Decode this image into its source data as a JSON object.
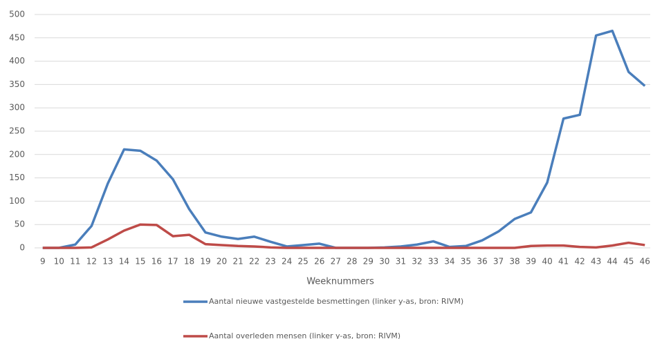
{
  "chart_data": {
    "type": "line",
    "x_label": "Weeknummers",
    "categories": [
      "9",
      "10",
      "11",
      "12",
      "13",
      "14",
      "15",
      "16",
      "17",
      "18",
      "19",
      "20",
      "21",
      "22",
      "23",
      "24",
      "25",
      "26",
      "27",
      "28",
      "29",
      "30",
      "31",
      "32",
      "33",
      "34",
      "35",
      "36",
      "37",
      "38",
      "39",
      "40",
      "41",
      "42",
      "43",
      "44",
      "45",
      "46"
    ],
    "series": [
      {
        "name": "Aantal nieuwe vastgestelde besmettingen  (linker y-as, bron: RIVM)",
        "color": "#4a7ebb",
        "values": [
          0,
          0,
          7,
          47,
          138,
          211,
          208,
          187,
          147,
          83,
          33,
          24,
          19,
          24,
          13,
          3,
          6,
          9,
          0,
          0,
          0,
          1,
          3,
          7,
          14,
          2,
          4,
          16,
          35,
          62,
          76,
          140,
          277,
          285,
          455,
          465,
          377,
          347
        ]
      },
      {
        "name": "Aantal overleden mensen  (linker y-as, bron: RIVM)",
        "color": "#be4b48",
        "values": [
          0,
          0,
          0,
          1,
          18,
          37,
          50,
          49,
          25,
          28,
          8,
          6,
          4,
          3,
          1,
          0,
          0,
          0,
          0,
          0,
          0,
          0,
          0,
          0,
          0,
          0,
          0,
          0,
          0,
          0,
          4,
          5,
          5,
          2,
          1,
          5,
          11,
          6
        ]
      }
    ],
    "ylim": [
      0,
      500
    ],
    "yticks": [
      0,
      50,
      100,
      150,
      200,
      250,
      300,
      350,
      400,
      450,
      500
    ],
    "grid": true
  }
}
